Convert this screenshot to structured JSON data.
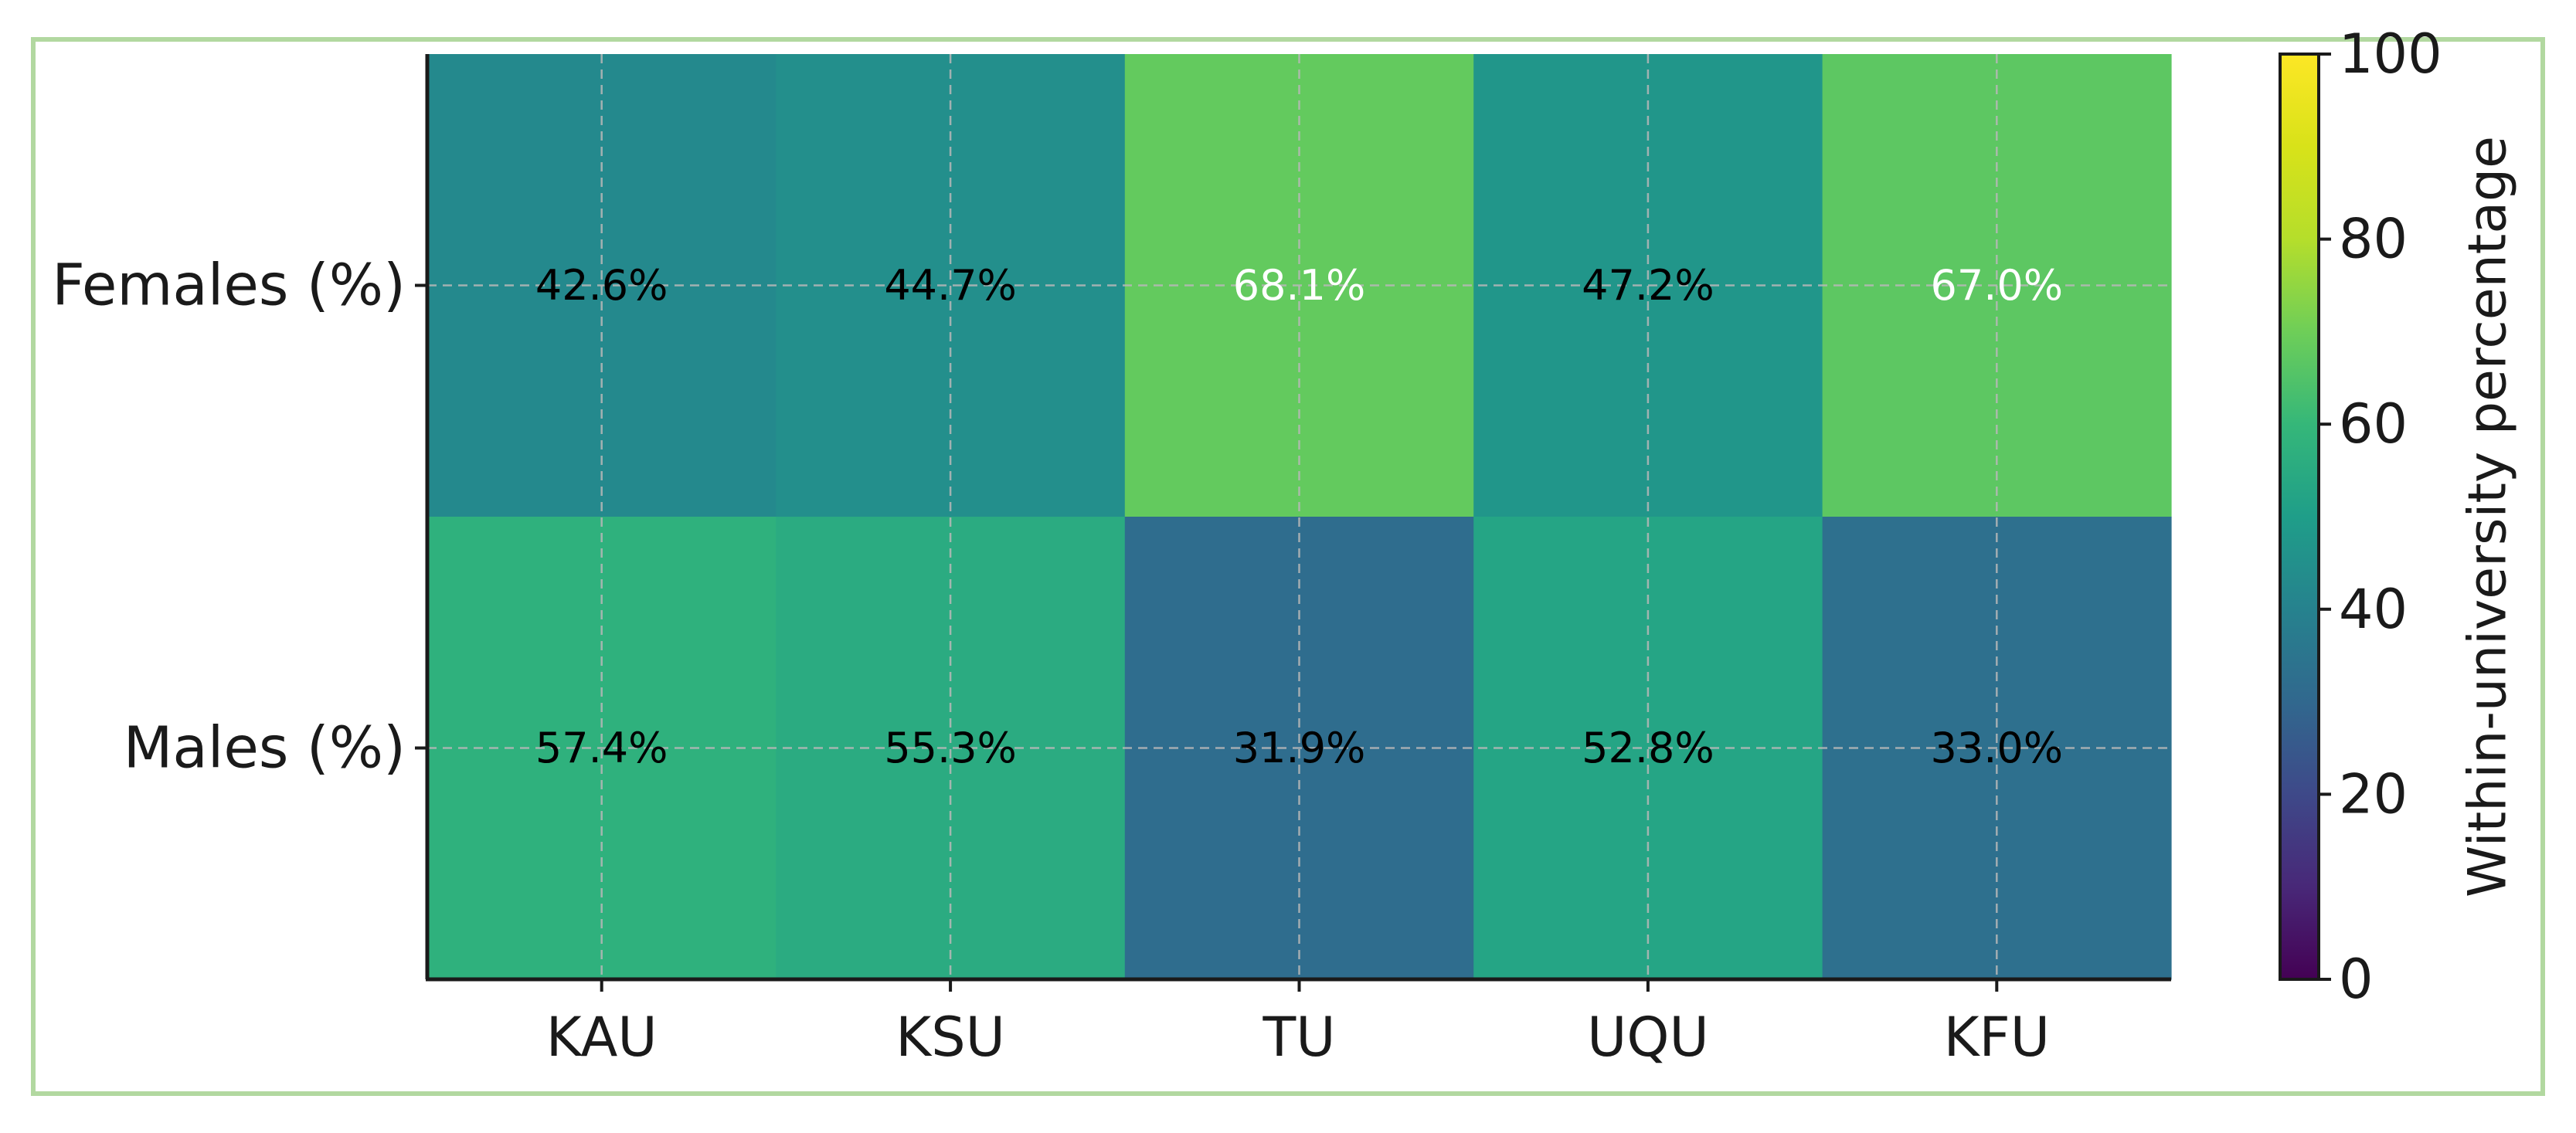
{
  "chart_data": {
    "type": "heatmap",
    "title": "",
    "xlabel": "",
    "ylabel": "",
    "columns": [
      "KAU",
      "KSU",
      "TU",
      "UQU",
      "KFU"
    ],
    "rows": [
      "Females (%)",
      "Males (%)"
    ],
    "values": [
      [
        42.6,
        44.7,
        68.1,
        47.2,
        67.0
      ],
      [
        57.4,
        55.3,
        31.9,
        52.8,
        33.0
      ]
    ],
    "cell_labels": [
      [
        "42.6%",
        "44.7%",
        "68.1%",
        "47.2%",
        "67.0%"
      ],
      [
        "57.4%",
        "55.3%",
        "31.9%",
        "52.8%",
        "33.0%"
      ]
    ],
    "colormap": "viridis",
    "colorbar": {
      "label": "Within-university percentage",
      "range": [
        0,
        100
      ],
      "ticks": [
        "0",
        "20",
        "40",
        "60",
        "80",
        "100"
      ]
    },
    "grid": true
  }
}
